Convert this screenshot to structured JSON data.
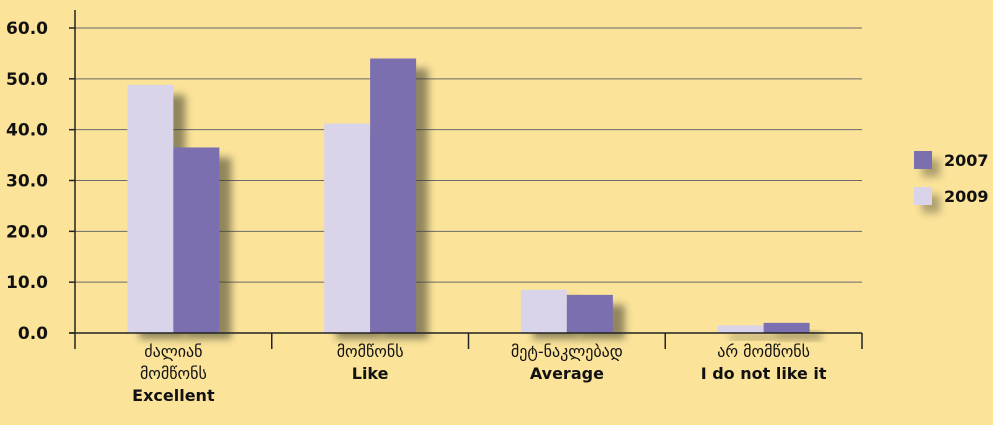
{
  "chart_data": {
    "type": "bar",
    "categories": [
      [
        "ძალიან",
        "მომწონს",
        "Excellent"
      ],
      [
        "მომწონს",
        "Like"
      ],
      [
        "მეტ-ნაკლებად",
        "Average"
      ],
      [
        "არ მომწონს",
        "I do not like it"
      ]
    ],
    "series": [
      {
        "name": "2009",
        "values": [
          48.8,
          41.2,
          8.5,
          1.5
        ],
        "color": "#d9d4ea"
      },
      {
        "name": "2007",
        "values": [
          36.5,
          54.0,
          7.5,
          2.0
        ],
        "color": "#7b6fb0"
      }
    ],
    "legend_order": [
      "2007",
      "2009"
    ],
    "yticks": [
      "0.0",
      "10.0",
      "20.0",
      "30.0",
      "40.0",
      "50.0",
      "60.0"
    ],
    "ylim": [
      0,
      60
    ],
    "grid": true,
    "legend_position": "right",
    "background": "#fbe39a"
  }
}
